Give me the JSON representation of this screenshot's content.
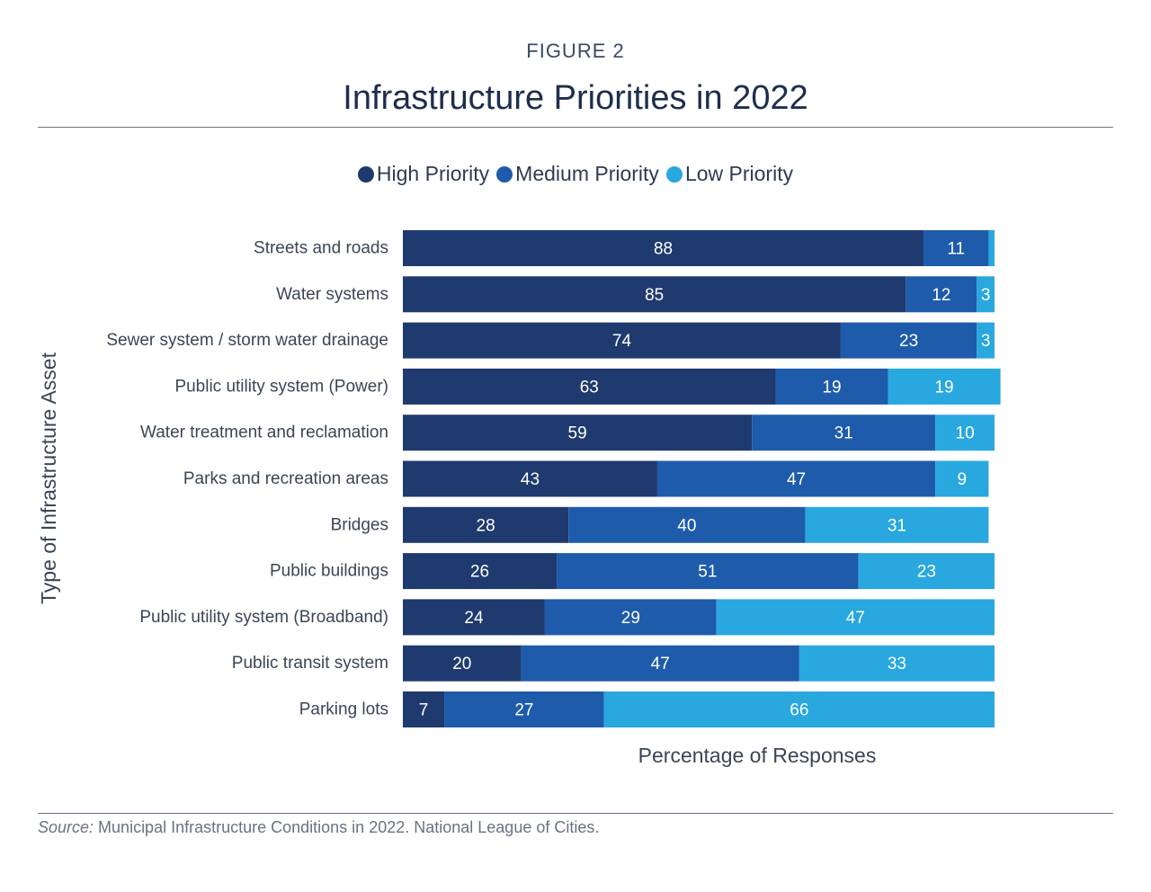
{
  "figure_label": "FIGURE 2",
  "source": {
    "label": "Source:",
    "text": " Municipal Infrastructure Conditions in 2022. National League of Cities."
  },
  "colors": {
    "high": "#1f3a6e",
    "medium": "#1e5bab",
    "low": "#29a7df",
    "label_text": "#ffffff",
    "axis_text": "#3b4556"
  },
  "chart_data": {
    "type": "bar",
    "orientation": "horizontal",
    "stacked": true,
    "title": "Infrastructure Priorities in 2022",
    "xlabel": "Percentage of Responses",
    "ylabel": "Type of Infrastructure Asset",
    "xlim": [
      0,
      100
    ],
    "grid": false,
    "legend_position": "top-center",
    "categories": [
      "Streets and roads",
      "Water systems",
      "Sewer system / storm water drainage",
      "Public utility system (Power)",
      "Water treatment and reclamation",
      "Parks and recreation areas",
      "Bridges",
      "Public buildings",
      "Public utility system (Broadband)",
      "Public transit system",
      "Parking lots"
    ],
    "series": [
      {
        "name": "High Priority",
        "color": "#1f3a6e",
        "values": [
          88,
          85,
          74,
          63,
          59,
          43,
          28,
          26,
          24,
          20,
          7
        ]
      },
      {
        "name": "Medium Priority",
        "color": "#1e5bab",
        "values": [
          11,
          12,
          23,
          19,
          31,
          47,
          40,
          51,
          29,
          47,
          27
        ]
      },
      {
        "name": "Low Priority",
        "color": "#29a7df",
        "values": [
          1,
          3,
          3,
          19,
          10,
          9,
          31,
          23,
          47,
          33,
          66
        ]
      }
    ],
    "data_labels": [
      [
        "88",
        "11",
        ""
      ],
      [
        "85",
        "12",
        "3"
      ],
      [
        "74",
        "23",
        "3"
      ],
      [
        "63",
        "19",
        "19"
      ],
      [
        "59",
        "31",
        "10"
      ],
      [
        "43",
        "47",
        "9"
      ],
      [
        "28",
        "40",
        "31"
      ],
      [
        "26",
        "51",
        "23"
      ],
      [
        "24",
        "29",
        "47"
      ],
      [
        "20",
        "47",
        "33"
      ],
      [
        "7",
        "27",
        "66"
      ]
    ]
  }
}
